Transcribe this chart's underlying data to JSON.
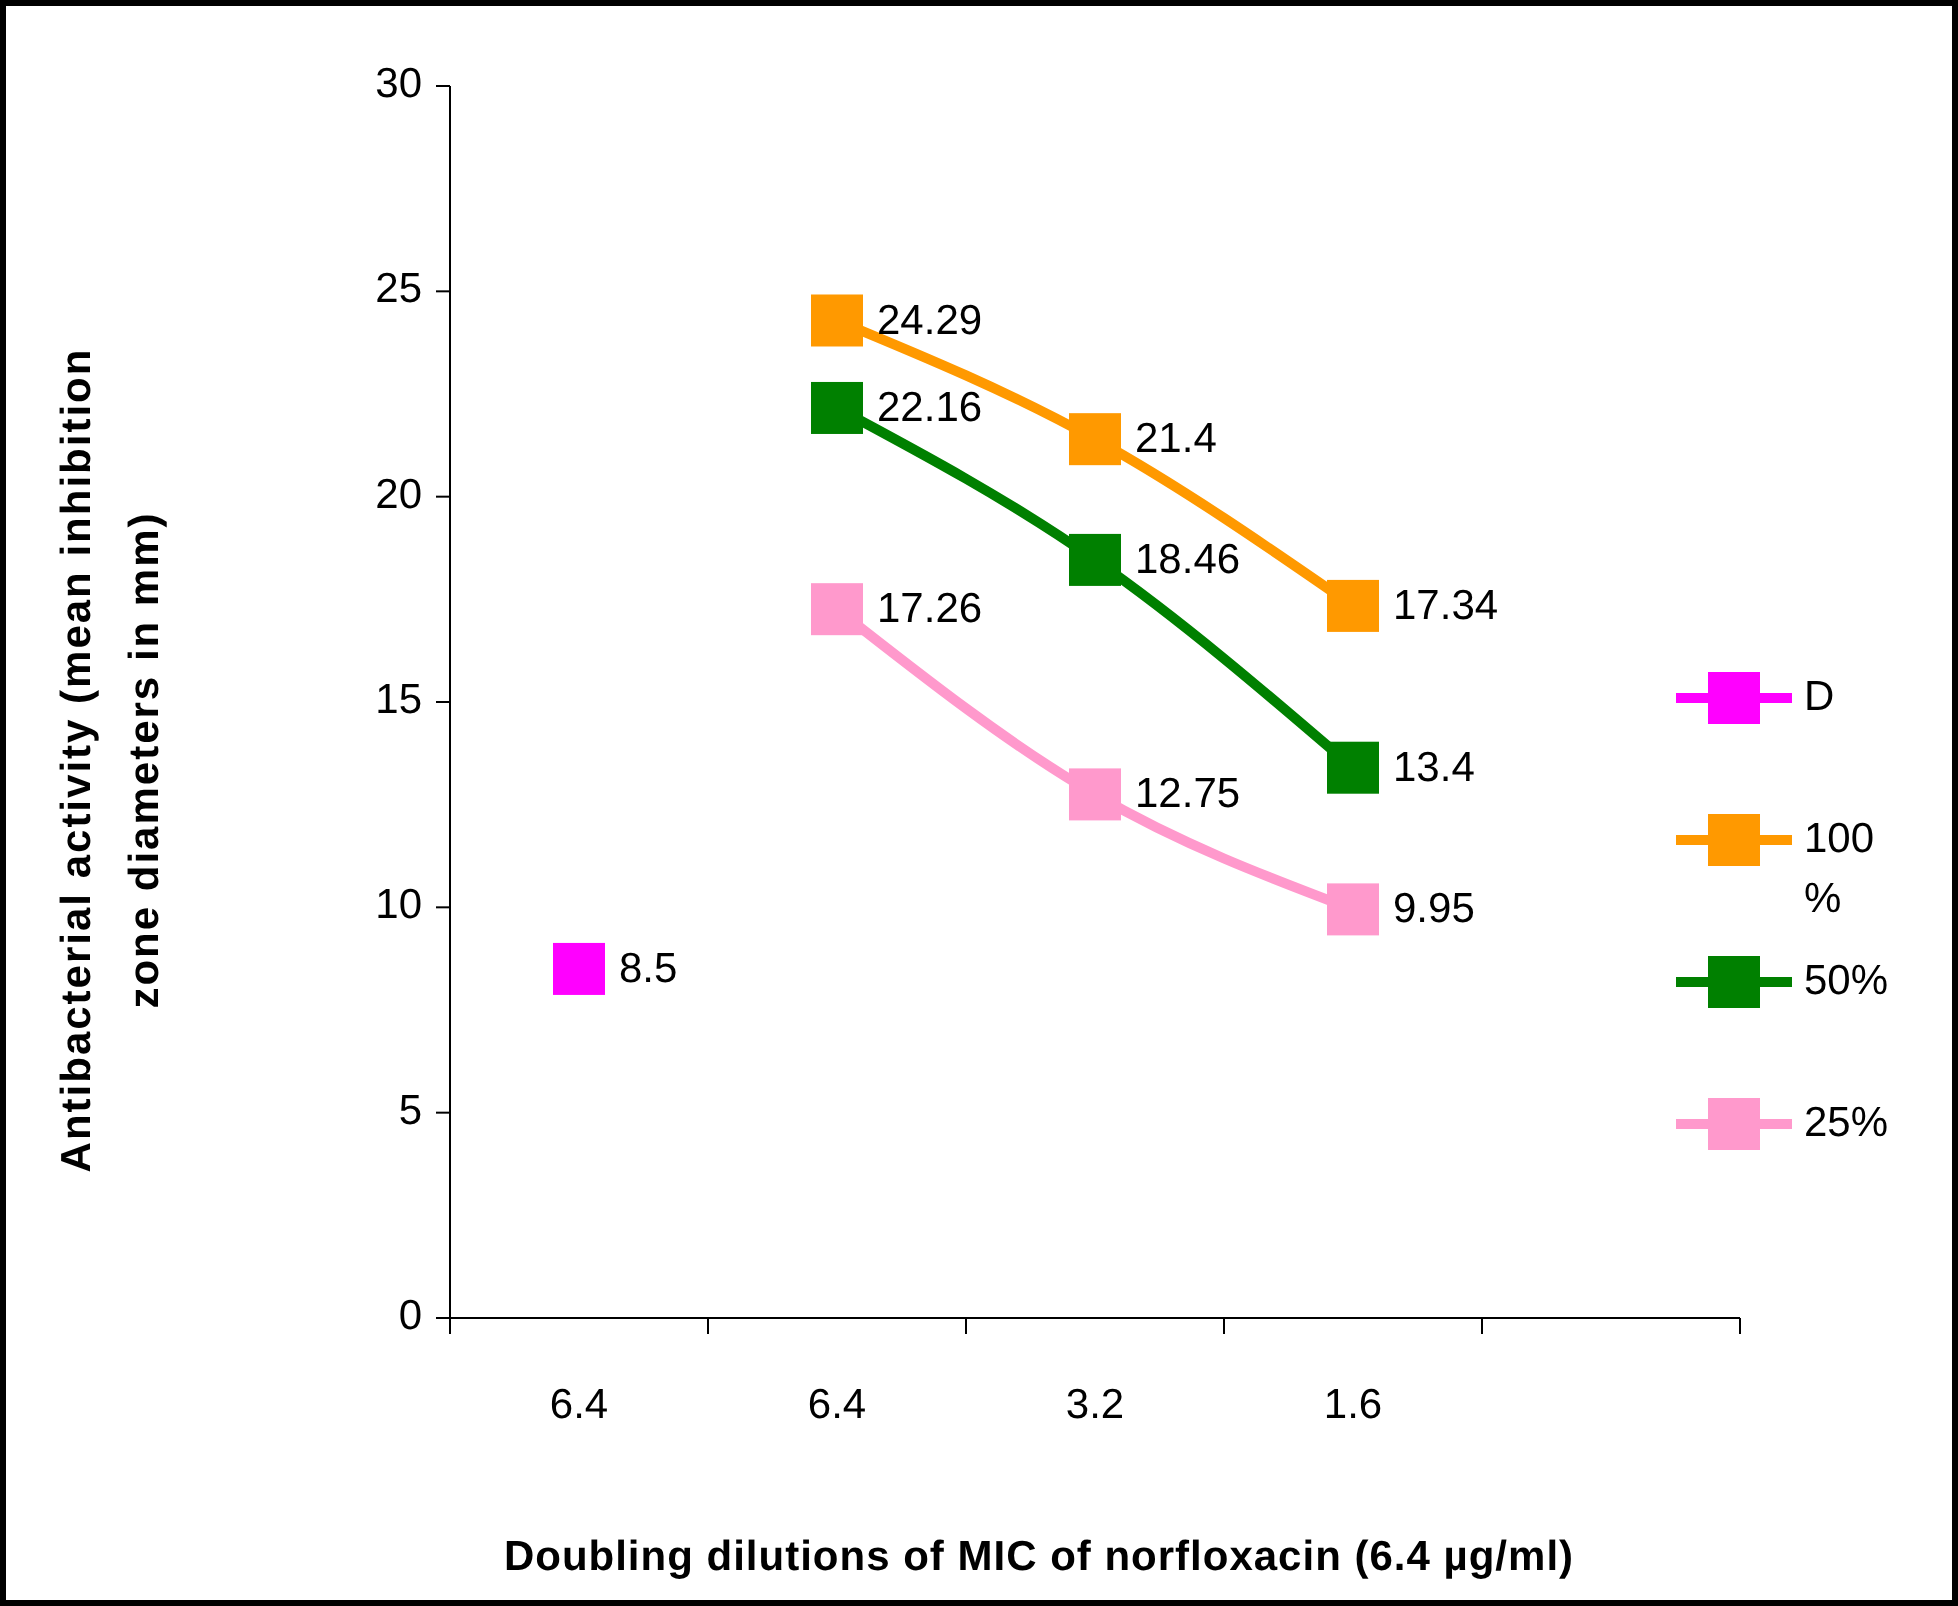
{
  "chart_data": {
    "type": "line",
    "xlabel": "Doubling dilutions of MIC of norfloxacin (6.4 µg/ml)",
    "ylabel": "Antibacterial activity (mean inhibition\nzone diameters in mm)",
    "categories": [
      "6.4",
      "6.4",
      "3.2",
      "1.6",
      null
    ],
    "ylim": [
      0,
      30
    ],
    "yticks": [
      0,
      5,
      10,
      15,
      20,
      25,
      30
    ],
    "grid": false,
    "legend": "right",
    "marker": "square",
    "line_style": "solid",
    "data_labels": true,
    "series": [
      {
        "name": "D",
        "color": "#ff00ff",
        "values": [
          8.5,
          null,
          null,
          null,
          null
        ]
      },
      {
        "name": "100 %",
        "color": "#ff9900",
        "values": [
          null,
          24.29,
          21.4,
          17.34,
          null
        ]
      },
      {
        "name": "50%",
        "color": "#008000",
        "values": [
          null,
          22.16,
          18.46,
          13.4,
          null
        ]
      },
      {
        "name": "25%",
        "color": "#ff99cc",
        "values": [
          null,
          17.26,
          12.75,
          9.95,
          null
        ]
      }
    ]
  }
}
